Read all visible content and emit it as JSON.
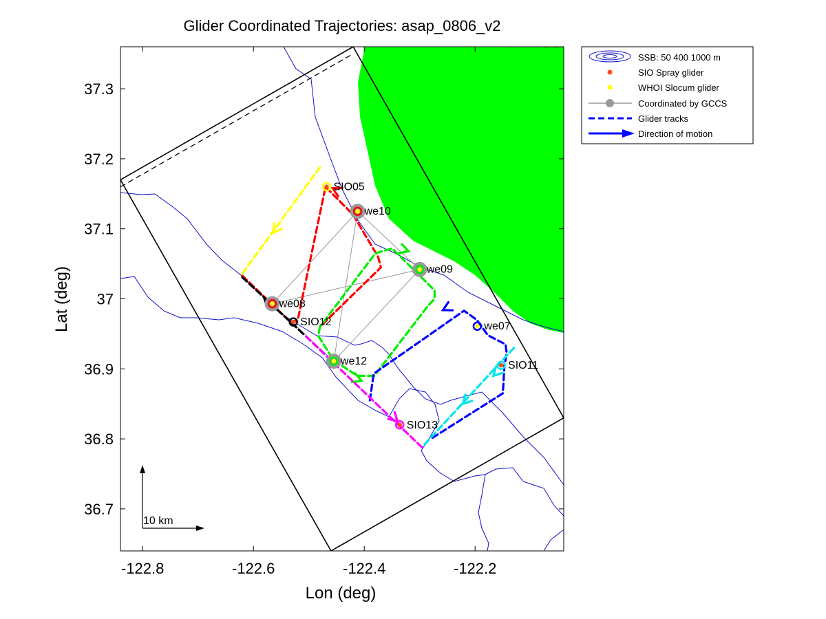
{
  "figure": {
    "title": "Glider Coordinated Trajectories: asap_0806_v2",
    "xlabel": "Lon (deg)",
    "ylabel": "Lat (deg)",
    "scale_bar": "10 km"
  },
  "chart_data": {
    "type": "map",
    "title": "Glider Coordinated Trajectories: asap_0806_v2",
    "xlabel": "Lon (deg)",
    "ylabel": "Lat (deg)",
    "xlim": [
      -122.84,
      -122.04
    ],
    "ylim": [
      36.64,
      37.36
    ],
    "xticks": [
      -122.8,
      -122.6,
      -122.4,
      -122.2
    ],
    "xtick_labels": [
      "-122.8",
      "-122.6",
      "-122.4",
      "-122.2"
    ],
    "yticks": [
      36.7,
      36.8,
      36.9,
      37.0,
      37.1,
      37.2,
      37.3
    ],
    "ytick_labels": [
      "36.7",
      "36.8",
      "36.9",
      "37",
      "37.1",
      "37.2",
      "37.3"
    ],
    "grid": false,
    "legend_position": "outside-top-right",
    "legend": [
      {
        "label": "SSB: 50   400  1000 m",
        "kind": "contour",
        "color": "#1010c8"
      },
      {
        "label": "SIO Spray glider",
        "kind": "dot",
        "color": "#ff4d1a"
      },
      {
        "label": "WHOI Slocum glider",
        "kind": "dot",
        "color": "#ffff00"
      },
      {
        "label": "Coordinated by GCCS",
        "kind": "line-marker",
        "color": "#999999"
      },
      {
        "label": "Glider tracks",
        "kind": "dashed",
        "color": "#0000ff"
      },
      {
        "label": "Direction of motion",
        "kind": "arrow",
        "color": "#0000ff"
      }
    ],
    "colors": {
      "land": "#00ff00",
      "contour": "#1010c8",
      "box": "#000000",
      "coord_line": "#999999",
      "coord_marker": "#999999",
      "spray": "#ff4d1a",
      "slocum": "#ffff00"
    },
    "domain_box": {
      "outer": [
        [
          -122.84,
          37.17
        ],
        [
          -122.46,
          36.64
        ],
        [
          -122.04,
          36.83
        ],
        [
          -122.42,
          37.36
        ]
      ],
      "inner_dashed": [
        [
          -122.84,
          37.16
        ],
        [
          -122.42,
          37.35
        ]
      ]
    },
    "coordination_edges": [
      [
        "we10",
        "we08"
      ],
      [
        "we10",
        "we09"
      ],
      [
        "we10",
        "we12"
      ],
      [
        "we08",
        "we09"
      ],
      [
        "we08",
        "we12"
      ],
      [
        "we09",
        "we12"
      ]
    ],
    "gliders": [
      {
        "name": "SIO05",
        "type": "spray",
        "coordinated": false,
        "lon": -122.468,
        "lat": 37.16,
        "ring": "#ffff00"
      },
      {
        "name": "we10",
        "type": "slocum",
        "coordinated": true,
        "lon": -122.412,
        "lat": 37.125,
        "ring": "#ff0000"
      },
      {
        "name": "we09",
        "type": "slocum",
        "coordinated": true,
        "lon": -122.3,
        "lat": 37.042,
        "ring": "#00ee00"
      },
      {
        "name": "we08",
        "type": "slocum",
        "coordinated": true,
        "lon": -122.566,
        "lat": 36.993,
        "ring": "#ff0000"
      },
      {
        "name": "SIO12",
        "type": "spray",
        "coordinated": false,
        "lon": -122.528,
        "lat": 36.967,
        "ring": "#000000"
      },
      {
        "name": "we07",
        "type": "slocum",
        "coordinated": false,
        "lon": -122.196,
        "lat": 36.961,
        "ring": "#0000ff"
      },
      {
        "name": "SIO11",
        "type": "spray",
        "coordinated": false,
        "lon": -122.153,
        "lat": 36.905,
        "ring": "#00e5ee"
      },
      {
        "name": "we12",
        "type": "slocum",
        "coordinated": true,
        "lon": -122.455,
        "lat": 36.911,
        "ring": "#00ee00"
      },
      {
        "name": "SIO13",
        "type": "spray",
        "coordinated": false,
        "lon": -122.336,
        "lat": 36.82,
        "ring": "#ff00ff"
      }
    ],
    "tracks": [
      {
        "color": "#ffff00",
        "points": [
          [
            -122.48,
            37.188
          ],
          [
            -122.623,
            37.033
          ]
        ],
        "arrows": [
          [
            -122.55,
            37.11,
            -122.565,
            37.094
          ]
        ]
      },
      {
        "color": "#ff0000",
        "points": [
          [
            -122.62,
            37.033
          ],
          [
            -122.532,
            36.966
          ],
          [
            -122.52,
            36.97
          ],
          [
            -122.47,
            37.16
          ],
          [
            -122.42,
            37.12
          ],
          [
            -122.39,
            37.08
          ],
          [
            -122.375,
            37.06
          ],
          [
            -122.37,
            37.045
          ],
          [
            -122.48,
            36.96
          ]
        ],
        "arrows": [
          [
            -122.43,
            37.147,
            -122.457,
            37.158
          ]
        ]
      },
      {
        "color": "#00ee00",
        "points": [
          [
            -122.48,
            36.96
          ],
          [
            -122.483,
            36.947
          ],
          [
            -122.455,
            36.912
          ],
          [
            -122.412,
            36.89
          ],
          [
            -122.382,
            36.89
          ],
          [
            -122.285,
            36.99
          ],
          [
            -122.273,
            37.0
          ],
          [
            -122.273,
            37.012
          ],
          [
            -122.35,
            37.072
          ],
          [
            -122.38,
            37.065
          ],
          [
            -122.48,
            36.96
          ]
        ],
        "arrows": [
          [
            -122.425,
            36.889,
            -122.405,
            36.883
          ],
          [
            -122.34,
            37.073,
            -122.32,
            37.068
          ]
        ]
      },
      {
        "color": "#0000ff",
        "points": [
          [
            -122.39,
            36.855
          ],
          [
            -122.383,
            36.893
          ],
          [
            -122.22,
            36.983
          ],
          [
            -122.197,
            36.97
          ],
          [
            -122.177,
            36.948
          ],
          [
            -122.145,
            36.935
          ],
          [
            -122.143,
            36.922
          ],
          [
            -122.147,
            36.905
          ],
          [
            -122.15,
            36.865
          ],
          [
            -122.28,
            36.8
          ]
        ],
        "arrows": [
          [
            -122.243,
            36.99,
            -122.258,
            36.984
          ]
        ]
      },
      {
        "color": "#00e5ee",
        "points": [
          [
            -122.13,
            36.93
          ],
          [
            -122.296,
            36.788
          ]
        ],
        "arrows": [
          [
            -122.155,
            36.9,
            -122.167,
            36.89
          ],
          [
            -122.21,
            36.86,
            -122.222,
            36.85
          ]
        ]
      },
      {
        "color": "#ff00ff",
        "points": [
          [
            -122.296,
            36.788
          ],
          [
            -122.51,
            36.95
          ]
        ],
        "arrows": [
          [
            -122.353,
            36.835,
            -122.34,
            36.825
          ]
        ]
      },
      {
        "color": "#000000",
        "points": [
          [
            -122.51,
            36.95
          ],
          [
            -122.623,
            37.033
          ]
        ],
        "arrows": [
          [
            -122.55,
            36.978,
            -122.58,
            37.0
          ]
        ]
      }
    ]
  }
}
